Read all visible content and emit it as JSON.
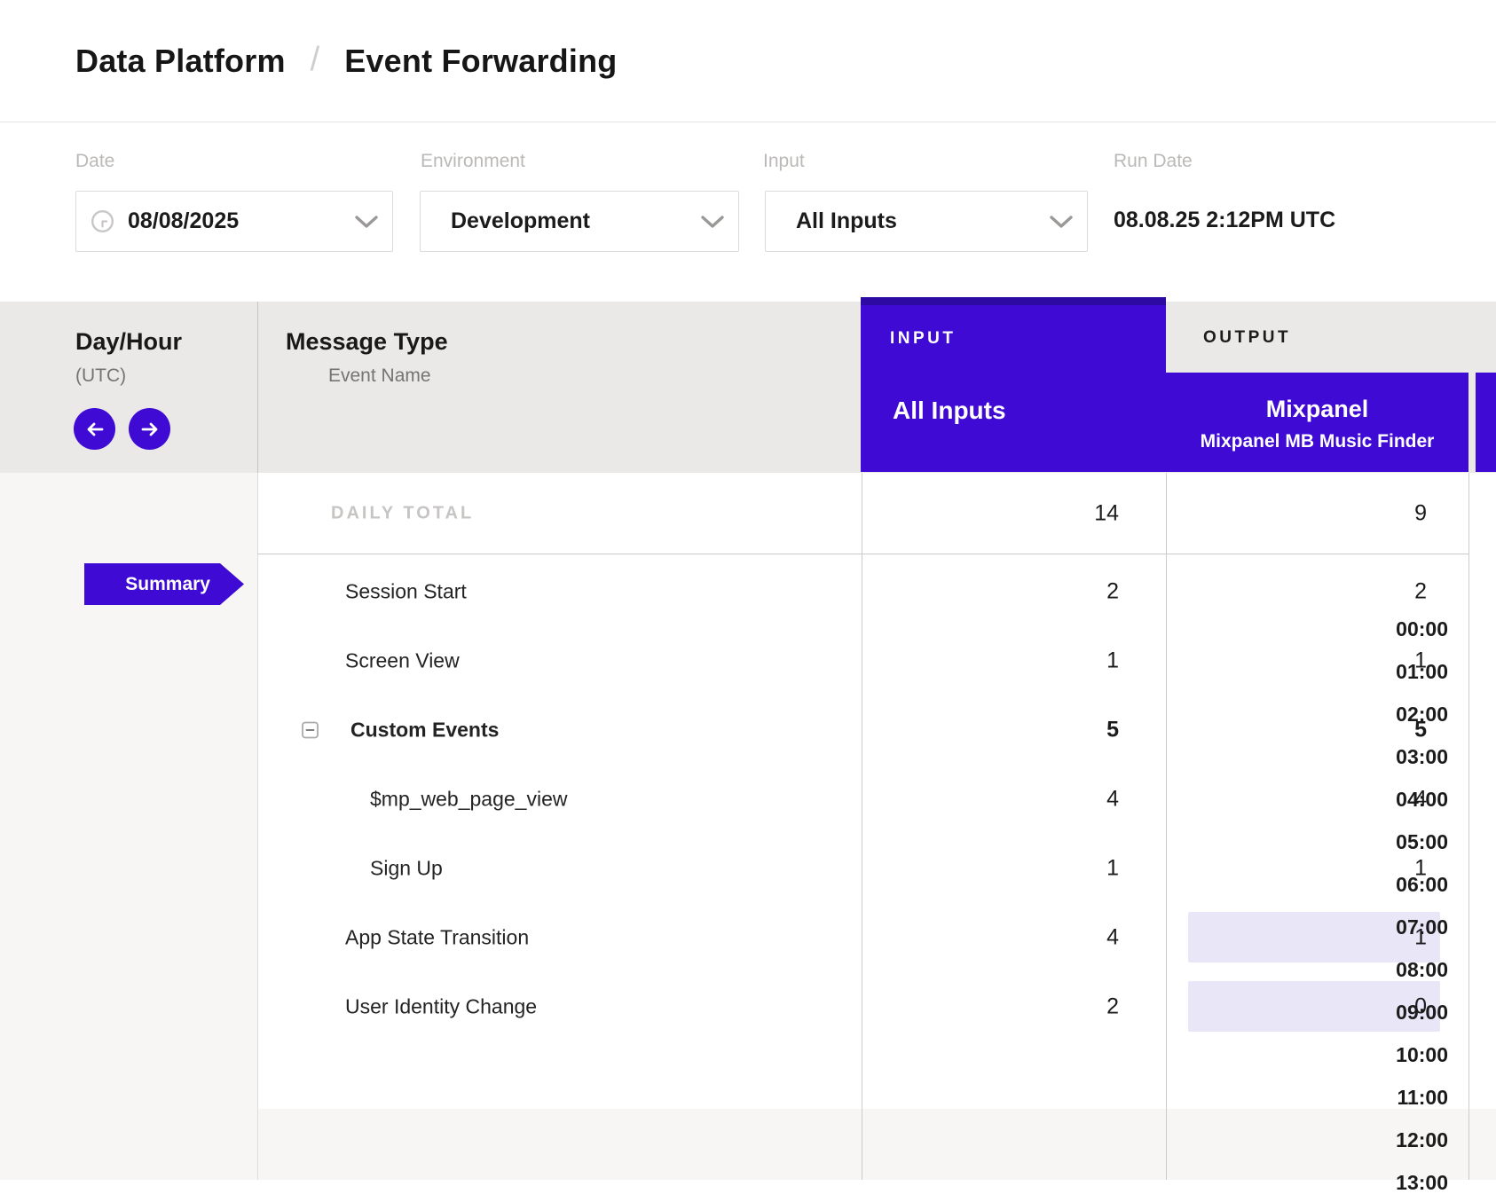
{
  "colors": {
    "purple": "#3E0AD4",
    "purple_dark": "#2D0BA3",
    "highlight_cell": "#E9E6F8"
  },
  "breadcrumb": {
    "section": "Data Platform",
    "separator": "/",
    "page": "Event Forwarding"
  },
  "filters": {
    "date": {
      "label": "Date",
      "value": "08/08/2025"
    },
    "environment": {
      "label": "Environment",
      "value": "Development"
    },
    "input": {
      "label": "Input",
      "value": "All Inputs"
    },
    "run_date": {
      "label": "Run Date",
      "value": "08.08.25 2:12PM UTC"
    }
  },
  "grid": {
    "day_hour_header": {
      "title": "Day/Hour",
      "subtitle": "(UTC)"
    },
    "message_type_header": {
      "title": "Message Type",
      "subtitle": "Event Name"
    },
    "input_column": {
      "group_label": "INPUT",
      "name": "All Inputs"
    },
    "output_column": {
      "group_label": "OUTPUT",
      "name": "Mixpanel",
      "subtitle": "Mixpanel MB Music Finder"
    },
    "daily_total": {
      "label": "DAILY TOTAL",
      "input_value": "14",
      "output_value": "9"
    },
    "rows": [
      {
        "label": "Session Start",
        "input_value": "2",
        "output_value": "2",
        "bold": false,
        "collapsible": false,
        "child": false,
        "output_highlight": false
      },
      {
        "label": "Screen View",
        "input_value": "1",
        "output_value": "1",
        "bold": false,
        "collapsible": false,
        "child": false,
        "output_highlight": false
      },
      {
        "label": "Custom Events",
        "input_value": "5",
        "output_value": "5",
        "bold": true,
        "collapsible": true,
        "child": false,
        "output_highlight": false
      },
      {
        "label": "$mp_web_page_view",
        "input_value": "4",
        "output_value": "4",
        "bold": false,
        "collapsible": false,
        "child": true,
        "output_highlight": false
      },
      {
        "label": "Sign Up",
        "input_value": "1",
        "output_value": "1",
        "bold": false,
        "collapsible": false,
        "child": true,
        "output_highlight": false
      },
      {
        "label": "App State Transition",
        "input_value": "4",
        "output_value": "1",
        "bold": false,
        "collapsible": false,
        "child": false,
        "output_highlight": true
      },
      {
        "label": "User Identity Change",
        "input_value": "2",
        "output_value": "0",
        "bold": false,
        "collapsible": false,
        "child": false,
        "output_highlight": true
      }
    ],
    "time_nav": {
      "summary_label": "Summary",
      "hours": [
        "00:00",
        "01:00",
        "02:00",
        "03:00",
        "04:00",
        "05:00",
        "06:00",
        "07:00",
        "08:00",
        "09:00",
        "10:00",
        "11:00",
        "12:00",
        "13:00"
      ]
    }
  }
}
